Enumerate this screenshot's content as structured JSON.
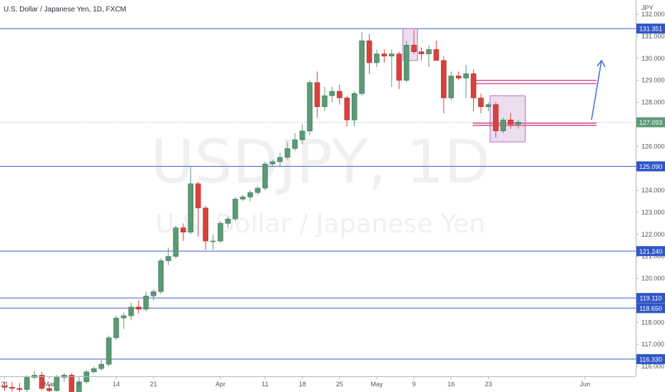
{
  "chart_data": {
    "type": "candlestick",
    "title": "U.S. Dollar / Japanese Yen, 1D, FXCM",
    "watermark_symbol": "USDJPY, 1D",
    "watermark_name": "U.S. Dollar / Japanese Yen",
    "currency": "JPY",
    "last_price": "127.093",
    "y_range": [
      115.55,
      132.65
    ],
    "y_ticks": [
      "132.000",
      "131.000",
      "130.000",
      "129.000",
      "128.000",
      "127.000",
      "126.000",
      "125.000",
      "124.000",
      "123.000",
      "122.000",
      "121.000",
      "120.000",
      "119.000",
      "118.000",
      "117.000",
      "116.000"
    ],
    "x_labels": [
      "21",
      "Mar",
      "7",
      "14",
      "21",
      "Apr",
      "11",
      "18",
      "25",
      "May",
      "9",
      "16",
      "23",
      "Jun"
    ],
    "levels": [
      {
        "label": "131.351",
        "value": 131.351
      },
      {
        "label": "125.090",
        "value": 125.09
      },
      {
        "label": "121.240",
        "value": 121.24
      },
      {
        "label": "119.110",
        "value": 119.11
      },
      {
        "label": "118.650",
        "value": 118.65
      },
      {
        "label": "116.330",
        "value": 116.33
      }
    ],
    "colors": {
      "up": "#5b9a74",
      "down": "#d9413c",
      "level": "#3a5fd0",
      "box": "#e0bfe6",
      "box_border": "#b070c0",
      "zone": "#d9518c",
      "arrow": "#3a6fd0",
      "badge": "#2f56c8"
    },
    "candles": [
      {
        "d": "Feb 21",
        "o": 115.1,
        "h": 115.3,
        "l": 114.9,
        "c": 115.05
      },
      {
        "d": "Feb 22",
        "o": 115.05,
        "h": 115.3,
        "l": 114.85,
        "c": 115.0
      },
      {
        "d": "Feb 23",
        "o": 115.0,
        "h": 115.25,
        "l": 114.85,
        "c": 114.95
      },
      {
        "d": "Feb 24",
        "o": 114.95,
        "h": 115.6,
        "l": 114.4,
        "c": 115.5
      },
      {
        "d": "Feb 25",
        "o": 115.5,
        "h": 115.8,
        "l": 115.4,
        "c": 115.6
      },
      {
        "d": "Feb 28",
        "o": 115.6,
        "h": 115.75,
        "l": 114.9,
        "c": 115.0
      },
      {
        "d": "Mar 1",
        "o": 115.0,
        "h": 115.2,
        "l": 114.75,
        "c": 114.9
      },
      {
        "d": "Mar 2",
        "o": 114.9,
        "h": 115.6,
        "l": 114.85,
        "c": 115.5
      },
      {
        "d": "Mar 3",
        "o": 115.5,
        "h": 115.7,
        "l": 115.3,
        "c": 115.6
      },
      {
        "d": "Mar 4",
        "o": 115.6,
        "h": 115.7,
        "l": 114.6,
        "c": 114.8
      },
      {
        "d": "Mar 7",
        "o": 114.8,
        "h": 115.5,
        "l": 114.7,
        "c": 115.3
      },
      {
        "d": "Mar 8",
        "o": 115.3,
        "h": 115.85,
        "l": 115.2,
        "c": 115.75
      },
      {
        "d": "Mar 9",
        "o": 115.75,
        "h": 116.0,
        "l": 115.7,
        "c": 115.9
      },
      {
        "d": "Mar 10",
        "o": 115.9,
        "h": 116.3,
        "l": 115.8,
        "c": 116.1
      },
      {
        "d": "Mar 11",
        "o": 116.1,
        "h": 117.4,
        "l": 116.0,
        "c": 117.3
      },
      {
        "d": "Mar 14",
        "o": 117.3,
        "h": 118.3,
        "l": 117.2,
        "c": 118.2
      },
      {
        "d": "Mar 15",
        "o": 118.2,
        "h": 118.45,
        "l": 117.7,
        "c": 118.3
      },
      {
        "d": "Mar 16",
        "o": 118.3,
        "h": 118.9,
        "l": 118.1,
        "c": 118.7
      },
      {
        "d": "Mar 17",
        "o": 118.7,
        "h": 119.0,
        "l": 118.4,
        "c": 118.6
      },
      {
        "d": "Mar 18",
        "o": 118.6,
        "h": 119.4,
        "l": 118.5,
        "c": 119.2
      },
      {
        "d": "Mar 21",
        "o": 119.2,
        "h": 119.5,
        "l": 119.0,
        "c": 119.4
      },
      {
        "d": "Mar 22",
        "o": 119.4,
        "h": 120.9,
        "l": 119.3,
        "c": 120.8
      },
      {
        "d": "Mar 23",
        "o": 120.8,
        "h": 121.4,
        "l": 120.6,
        "c": 121.0
      },
      {
        "d": "Mar 24",
        "o": 121.0,
        "h": 122.4,
        "l": 120.9,
        "c": 122.3
      },
      {
        "d": "Mar 25",
        "o": 122.3,
        "h": 122.5,
        "l": 121.7,
        "c": 122.1
      },
      {
        "d": "Mar 28",
        "o": 122.1,
        "h": 125.1,
        "l": 122.0,
        "c": 124.3
      },
      {
        "d": "Mar 29",
        "o": 124.3,
        "h": 124.4,
        "l": 121.9,
        "c": 123.2
      },
      {
        "d": "Mar 30",
        "o": 123.2,
        "h": 123.3,
        "l": 121.3,
        "c": 121.7
      },
      {
        "d": "Mar 31",
        "o": 121.7,
        "h": 122.0,
        "l": 121.3,
        "c": 121.7
      },
      {
        "d": "Apr 1",
        "o": 121.7,
        "h": 122.6,
        "l": 121.6,
        "c": 122.5
      },
      {
        "d": "Apr 4",
        "o": 122.5,
        "h": 122.8,
        "l": 122.3,
        "c": 122.7
      },
      {
        "d": "Apr 5",
        "o": 122.7,
        "h": 123.7,
        "l": 122.6,
        "c": 123.6
      },
      {
        "d": "Apr 6",
        "o": 123.6,
        "h": 123.8,
        "l": 123.5,
        "c": 123.7
      },
      {
        "d": "Apr 7",
        "o": 123.7,
        "h": 124.0,
        "l": 123.5,
        "c": 123.9
      },
      {
        "d": "Apr 8",
        "o": 123.9,
        "h": 124.2,
        "l": 123.8,
        "c": 124.1
      },
      {
        "d": "Apr 11",
        "o": 124.1,
        "h": 125.3,
        "l": 124.0,
        "c": 125.2
      },
      {
        "d": "Apr 12",
        "o": 125.2,
        "h": 125.4,
        "l": 125.1,
        "c": 125.3
      },
      {
        "d": "Apr 13",
        "o": 125.3,
        "h": 125.7,
        "l": 125.1,
        "c": 125.5
      },
      {
        "d": "Apr 14",
        "o": 125.5,
        "h": 126.2,
        "l": 125.4,
        "c": 125.9
      },
      {
        "d": "Apr 15",
        "o": 125.9,
        "h": 126.6,
        "l": 125.8,
        "c": 126.3
      },
      {
        "d": "Apr 18",
        "o": 126.3,
        "h": 127.0,
        "l": 126.1,
        "c": 126.7
      },
      {
        "d": "Apr 19",
        "o": 126.7,
        "h": 129.0,
        "l": 126.5,
        "c": 128.9
      },
      {
        "d": "Apr 20",
        "o": 128.9,
        "h": 129.4,
        "l": 127.3,
        "c": 127.8
      },
      {
        "d": "Apr 21",
        "o": 127.8,
        "h": 128.7,
        "l": 127.6,
        "c": 128.3
      },
      {
        "d": "Apr 22",
        "o": 128.3,
        "h": 128.7,
        "l": 128.0,
        "c": 128.5
      },
      {
        "d": "Apr 25",
        "o": 128.5,
        "h": 128.8,
        "l": 127.9,
        "c": 128.2
      },
      {
        "d": "Apr 26",
        "o": 128.2,
        "h": 128.3,
        "l": 126.9,
        "c": 127.2
      },
      {
        "d": "Apr 27",
        "o": 127.2,
        "h": 128.5,
        "l": 126.9,
        "c": 128.4
      },
      {
        "d": "Apr 28",
        "o": 128.4,
        "h": 131.2,
        "l": 128.3,
        "c": 130.8
      },
      {
        "d": "Apr 29",
        "o": 130.8,
        "h": 131.1,
        "l": 129.3,
        "c": 129.8
      },
      {
        "d": "May 2",
        "o": 129.8,
        "h": 130.4,
        "l": 129.6,
        "c": 130.2
      },
      {
        "d": "May 3",
        "o": 130.2,
        "h": 130.4,
        "l": 129.8,
        "c": 130.1
      },
      {
        "d": "May 4",
        "o": 130.1,
        "h": 130.4,
        "l": 128.7,
        "c": 130.2
      },
      {
        "d": "May 5",
        "o": 130.2,
        "h": 130.3,
        "l": 128.6,
        "c": 129.0
      },
      {
        "d": "May 6",
        "o": 129.0,
        "h": 130.8,
        "l": 128.9,
        "c": 130.6
      },
      {
        "d": "May 9",
        "o": 130.6,
        "h": 131.3,
        "l": 130.2,
        "c": 130.3
      },
      {
        "d": "May 10",
        "o": 130.3,
        "h": 130.5,
        "l": 129.9,
        "c": 130.2
      },
      {
        "d": "May 11",
        "o": 130.2,
        "h": 130.6,
        "l": 129.6,
        "c": 130.4
      },
      {
        "d": "May 12",
        "o": 130.4,
        "h": 130.8,
        "l": 129.9,
        "c": 129.9
      },
      {
        "d": "May 13",
        "o": 129.9,
        "h": 130.1,
        "l": 127.5,
        "c": 128.2
      },
      {
        "d": "May 16",
        "o": 128.2,
        "h": 129.4,
        "l": 128.1,
        "c": 129.2
      },
      {
        "d": "May 17",
        "o": 129.2,
        "h": 129.4,
        "l": 129.0,
        "c": 129.1
      },
      {
        "d": "May 18",
        "o": 129.1,
        "h": 129.7,
        "l": 128.2,
        "c": 129.3
      },
      {
        "d": "May 19",
        "o": 129.3,
        "h": 129.5,
        "l": 127.6,
        "c": 128.2
      },
      {
        "d": "May 20",
        "o": 128.2,
        "h": 128.4,
        "l": 127.5,
        "c": 127.8
      },
      {
        "d": "May 23",
        "o": 127.8,
        "h": 128.0,
        "l": 127.6,
        "c": 127.9
      },
      {
        "d": "May 24",
        "o": 127.9,
        "h": 128.0,
        "l": 126.4,
        "c": 126.7
      },
      {
        "d": "May 25",
        "o": 126.7,
        "h": 127.3,
        "l": 126.6,
        "c": 127.2
      },
      {
        "d": "May 26",
        "o": 127.2,
        "h": 127.5,
        "l": 126.8,
        "c": 127.0
      },
      {
        "d": "May 27",
        "o": 127.0,
        "h": 127.2,
        "l": 126.8,
        "c": 127.1
      }
    ]
  }
}
